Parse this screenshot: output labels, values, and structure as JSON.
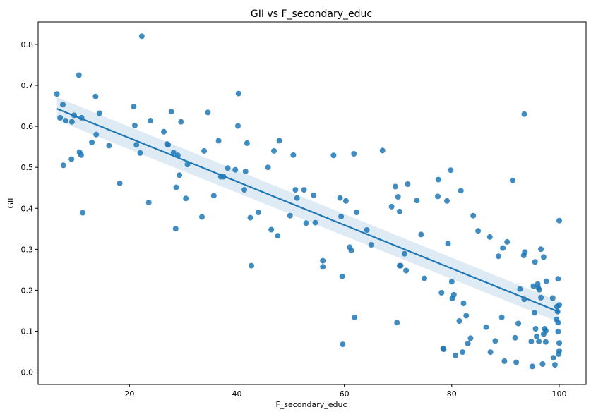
{
  "chart_data": {
    "type": "scatter",
    "title": "GII vs F_secondary_educ",
    "xlabel": "F_secondary_educ",
    "ylabel": "GII",
    "xlim": [
      3,
      105
    ],
    "ylim": [
      -0.03,
      0.855
    ],
    "xticks": [
      20,
      40,
      60,
      80,
      100
    ],
    "yticks": [
      0.0,
      0.1,
      0.2,
      0.3,
      0.4,
      0.5,
      0.6,
      0.7,
      0.8
    ],
    "xtick_labels": [
      "20",
      "40",
      "60",
      "80",
      "100"
    ],
    "ytick_labels": [
      "0.0",
      "0.1",
      "0.2",
      "0.3",
      "0.4",
      "0.5",
      "0.6",
      "0.7",
      "0.8"
    ],
    "grid": false,
    "legend": "none",
    "colors": {
      "points": "#1f77b4",
      "regression_line": "#1f77b4",
      "confidence_band": "#1f77b4",
      "frame": "#000000"
    },
    "regression": {
      "x": [
        6.5,
        100
      ],
      "y": [
        0.643,
        0.147
      ],
      "ci_lower": [
        0.615,
        0.122
      ],
      "ci_upper": [
        0.671,
        0.173
      ]
    },
    "points": [
      [
        6.5,
        0.679
      ],
      [
        7.1,
        0.621
      ],
      [
        7.6,
        0.653
      ],
      [
        7.7,
        0.505
      ],
      [
        8.1,
        0.614
      ],
      [
        9.2,
        0.52
      ],
      [
        9.3,
        0.611
      ],
      [
        9.7,
        0.627
      ],
      [
        10.6,
        0.725
      ],
      [
        10.7,
        0.537
      ],
      [
        11.0,
        0.53
      ],
      [
        11.1,
        0.621
      ],
      [
        11.3,
        0.389
      ],
      [
        13.0,
        0.561
      ],
      [
        13.7,
        0.673
      ],
      [
        13.8,
        0.58
      ],
      [
        14.4,
        0.632
      ],
      [
        16.2,
        0.553
      ],
      [
        18.2,
        0.461
      ],
      [
        20.8,
        0.648
      ],
      [
        21.0,
        0.602
      ],
      [
        21.3,
        0.555
      ],
      [
        22.0,
        0.535
      ],
      [
        22.3,
        0.82
      ],
      [
        23.6,
        0.414
      ],
      [
        23.9,
        0.614
      ],
      [
        26.4,
        0.587
      ],
      [
        27.0,
        0.557
      ],
      [
        27.2,
        0.555
      ],
      [
        27.8,
        0.636
      ],
      [
        28.2,
        0.536
      ],
      [
        28.6,
        0.35
      ],
      [
        28.7,
        0.451
      ],
      [
        29.0,
        0.529
      ],
      [
        29.3,
        0.481
      ],
      [
        29.6,
        0.611
      ],
      [
        30.5,
        0.424
      ],
      [
        30.8,
        0.507
      ],
      [
        33.5,
        0.379
      ],
      [
        33.9,
        0.54
      ],
      [
        34.6,
        0.634
      ],
      [
        35.7,
        0.431
      ],
      [
        36.6,
        0.565
      ],
      [
        37.0,
        0.477
      ],
      [
        37.5,
        0.477
      ],
      [
        38.3,
        0.498
      ],
      [
        39.7,
        0.494
      ],
      [
        40.2,
        0.601
      ],
      [
        40.3,
        0.68
      ],
      [
        41.4,
        0.445
      ],
      [
        41.6,
        0.49
      ],
      [
        41.9,
        0.559
      ],
      [
        42.5,
        0.377
      ],
      [
        42.7,
        0.26
      ],
      [
        44.0,
        0.39
      ],
      [
        45.8,
        0.5
      ],
      [
        46.4,
        0.348
      ],
      [
        46.9,
        0.54
      ],
      [
        47.6,
        0.333
      ],
      [
        47.9,
        0.565
      ],
      [
        49.9,
        0.382
      ],
      [
        50.5,
        0.53
      ],
      [
        50.9,
        0.445
      ],
      [
        51.2,
        0.425
      ],
      [
        52.5,
        0.445
      ],
      [
        52.9,
        0.364
      ],
      [
        54.3,
        0.432
      ],
      [
        54.6,
        0.365
      ],
      [
        56.0,
        0.272
      ],
      [
        56.0,
        0.257
      ],
      [
        58.0,
        0.529
      ],
      [
        59.2,
        0.425
      ],
      [
        59.4,
        0.38
      ],
      [
        59.6,
        0.234
      ],
      [
        59.7,
        0.068
      ],
      [
        60.3,
        0.418
      ],
      [
        61.0,
        0.305
      ],
      [
        61.3,
        0.297
      ],
      [
        61.8,
        0.533
      ],
      [
        61.9,
        0.134
      ],
      [
        62.3,
        0.39
      ],
      [
        64.2,
        0.347
      ],
      [
        65.0,
        0.311
      ],
      [
        67.1,
        0.541
      ],
      [
        68.8,
        0.404
      ],
      [
        69.5,
        0.453
      ],
      [
        69.8,
        0.121
      ],
      [
        70.0,
        0.428
      ],
      [
        70.3,
        0.392
      ],
      [
        70.3,
        0.26
      ],
      [
        70.5,
        0.26
      ],
      [
        71.2,
        0.289
      ],
      [
        71.5,
        0.248
      ],
      [
        71.8,
        0.459
      ],
      [
        73.5,
        0.419
      ],
      [
        74.3,
        0.336
      ],
      [
        74.9,
        0.229
      ],
      [
        77.4,
        0.429
      ],
      [
        77.5,
        0.47
      ],
      [
        78.1,
        0.194
      ],
      [
        78.4,
        0.058
      ],
      [
        78.5,
        0.056
      ],
      [
        79.1,
        0.418
      ],
      [
        79.3,
        0.314
      ],
      [
        79.8,
        0.493
      ],
      [
        80.0,
        0.221
      ],
      [
        80.1,
        0.18
      ],
      [
        80.4,
        0.189
      ],
      [
        80.7,
        0.041
      ],
      [
        81.4,
        0.125
      ],
      [
        81.7,
        0.443
      ],
      [
        82.0,
        0.049
      ],
      [
        82.2,
        0.168
      ],
      [
        82.7,
        0.138
      ],
      [
        83.0,
        0.07
      ],
      [
        83.5,
        0.083
      ],
      [
        84.0,
        0.382
      ],
      [
        84.9,
        0.345
      ],
      [
        86.4,
        0.11
      ],
      [
        87.1,
        0.33
      ],
      [
        87.2,
        0.049
      ],
      [
        88.1,
        0.076
      ],
      [
        88.7,
        0.283
      ],
      [
        89.3,
        0.134
      ],
      [
        89.5,
        0.303
      ],
      [
        89.8,
        0.027
      ],
      [
        90.3,
        0.318
      ],
      [
        91.3,
        0.468
      ],
      [
        91.8,
        0.084
      ],
      [
        92.0,
        0.024
      ],
      [
        92.4,
        0.119
      ],
      [
        92.7,
        0.203
      ],
      [
        93.5,
        0.63
      ],
      [
        93.4,
        0.285
      ],
      [
        93.6,
        0.293
      ],
      [
        93.5,
        0.178
      ],
      [
        94.8,
        0.075
      ],
      [
        95.0,
        0.014
      ],
      [
        95.2,
        0.21
      ],
      [
        95.4,
        0.145
      ],
      [
        95.5,
        0.269
      ],
      [
        95.6,
        0.106
      ],
      [
        95.8,
        0.087
      ],
      [
        96.0,
        0.215
      ],
      [
        96.1,
        0.206
      ],
      [
        96.2,
        0.075
      ],
      [
        96.3,
        0.201
      ],
      [
        96.6,
        0.3
      ],
      [
        96.6,
        0.182
      ],
      [
        96.9,
        0.02
      ],
      [
        97.1,
        0.281
      ],
      [
        97.1,
        0.093
      ],
      [
        97.3,
        0.106
      ],
      [
        97.5,
        0.101
      ],
      [
        97.5,
        0.074
      ],
      [
        97.6,
        0.222
      ],
      [
        98.8,
        0.181
      ],
      [
        98.9,
        0.035
      ],
      [
        99.2,
        0.018
      ],
      [
        99.5,
        0.129
      ],
      [
        99.6,
        0.16
      ],
      [
        99.7,
        0.148
      ],
      [
        99.8,
        0.228
      ],
      [
        99.8,
        0.121
      ],
      [
        99.8,
        0.099
      ],
      [
        99.9,
        0.044
      ],
      [
        100.0,
        0.37
      ],
      [
        100.0,
        0.164
      ],
      [
        100.0,
        0.071
      ],
      [
        100.0,
        0.052
      ]
    ]
  }
}
